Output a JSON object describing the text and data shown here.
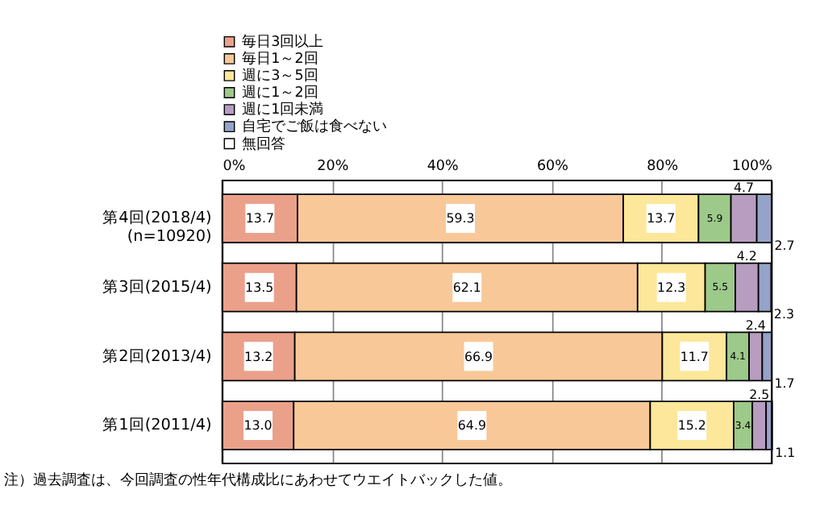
{
  "chart_data": {
    "type": "bar",
    "orientation": "horizontal",
    "stacked": true,
    "categories": [
      "第4回(2018/4)\n(n=10920)",
      "第3回(2015/4)",
      "第2回(2013/4)",
      "第1回(2011/4)"
    ],
    "series": [
      {
        "name": "毎日3回以上",
        "color": "#eba08a",
        "values": [
          13.7,
          13.5,
          13.2,
          13.0
        ],
        "value_labels": [
          "13.7",
          "13.5",
          "13.2",
          "13.0"
        ]
      },
      {
        "name": "毎日1～2回",
        "color": "#f9c898",
        "values": [
          59.3,
          62.1,
          66.9,
          64.9
        ]
      },
      {
        "name": "週に3～5回",
        "color": "#fde79a",
        "values": [
          13.7,
          12.3,
          11.7,
          15.2
        ]
      },
      {
        "name": "週に1～2回",
        "color": "#9dc98a",
        "values": [
          5.9,
          5.5,
          4.1,
          3.4
        ]
      },
      {
        "name": "週に1回未満",
        "color": "#b79dbf",
        "values": [
          4.7,
          4.2,
          2.4,
          2.5
        ]
      },
      {
        "name": "自宅でご飯は食べない",
        "color": "#96a3c8",
        "values": [
          2.7,
          2.3,
          1.7,
          1.1
        ]
      },
      {
        "name": "無回答",
        "color": "#ffffff",
        "values": [
          null,
          null,
          null,
          null
        ]
      }
    ],
    "xlim": [
      0,
      100
    ],
    "xticks": [
      {
        "value": 0,
        "label": "0%"
      },
      {
        "value": 20,
        "label": "20%"
      },
      {
        "value": 40,
        "label": "40%"
      },
      {
        "value": 60,
        "label": "60%"
      },
      {
        "value": 80,
        "label": "80%"
      },
      {
        "value": 100,
        "label": "100%"
      }
    ],
    "grid": "x",
    "legend": "top",
    "data_labels": true,
    "annotations": [
      "注）過去調査は、今回調査の性年代構成比にあわせてウエイトバックした値。"
    ]
  }
}
